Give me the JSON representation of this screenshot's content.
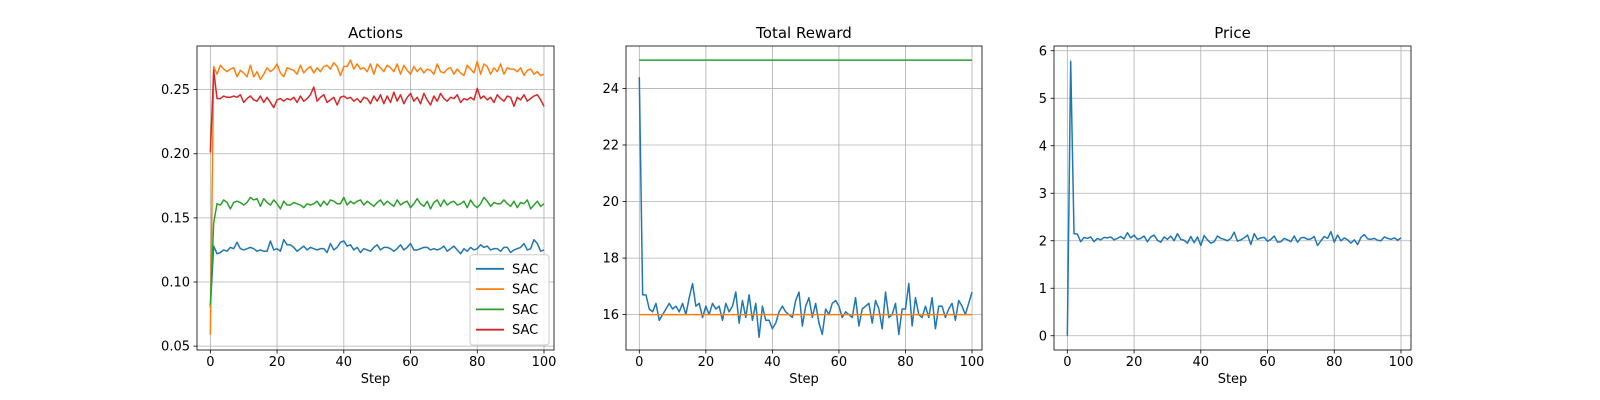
{
  "chart_data": [
    {
      "type": "line",
      "title": "Actions",
      "xlabel": "Step",
      "ylabel": "",
      "xlim": [
        -4,
        103
      ],
      "ylim": [
        0.047,
        0.284
      ],
      "xticks": [
        0,
        20,
        40,
        60,
        80,
        100
      ],
      "yticks": [
        0.05,
        0.1,
        0.15,
        0.2,
        0.25
      ],
      "ytick_labels": [
        "0.05",
        "0.10",
        "0.15",
        "0.20",
        "0.25"
      ],
      "grid": true,
      "legend": "lower right",
      "series": [
        {
          "name": "SAC",
          "color": "#1f77b4",
          "values": [
            0.08,
            0.128,
            0.122,
            0.123,
            0.125,
            0.124,
            0.127,
            0.126,
            0.131,
            0.126,
            0.125,
            0.126,
            0.127,
            0.126,
            0.124,
            0.125,
            0.124,
            0.124,
            0.132,
            0.125,
            0.126,
            0.124,
            0.133,
            0.129,
            0.129,
            0.127,
            0.124,
            0.126,
            0.128,
            0.125,
            0.127,
            0.126,
            0.125,
            0.126,
            0.126,
            0.123,
            0.13,
            0.125,
            0.127,
            0.131,
            0.132,
            0.128,
            0.129,
            0.125,
            0.127,
            0.123,
            0.126,
            0.125,
            0.124,
            0.127,
            0.129,
            0.125,
            0.127,
            0.127,
            0.126,
            0.124,
            0.126,
            0.129,
            0.125,
            0.127,
            0.13,
            0.125,
            0.125,
            0.126,
            0.127,
            0.127,
            0.125,
            0.126,
            0.125,
            0.126,
            0.128,
            0.124,
            0.126,
            0.128,
            0.125,
            0.122,
            0.126,
            0.124,
            0.127,
            0.125,
            0.126,
            0.129,
            0.127,
            0.128,
            0.125,
            0.126,
            0.126,
            0.124,
            0.127,
            0.127,
            0.123,
            0.125,
            0.126,
            0.127,
            0.13,
            0.125,
            0.126,
            0.133,
            0.13,
            0.124,
            0.125
          ]
        },
        {
          "name": "SAC",
          "color": "#ff7f0e",
          "values": [
            0.059,
            0.268,
            0.262,
            0.269,
            0.266,
            0.264,
            0.266,
            0.267,
            0.26,
            0.265,
            0.263,
            0.26,
            0.269,
            0.26,
            0.264,
            0.258,
            0.262,
            0.267,
            0.264,
            0.266,
            0.27,
            0.263,
            0.26,
            0.267,
            0.266,
            0.265,
            0.262,
            0.269,
            0.263,
            0.266,
            0.268,
            0.263,
            0.267,
            0.264,
            0.268,
            0.269,
            0.266,
            0.271,
            0.268,
            0.261,
            0.268,
            0.268,
            0.273,
            0.266,
            0.27,
            0.266,
            0.267,
            0.264,
            0.27,
            0.262,
            0.27,
            0.267,
            0.264,
            0.269,
            0.267,
            0.264,
            0.27,
            0.262,
            0.269,
            0.265,
            0.262,
            0.268,
            0.264,
            0.267,
            0.263,
            0.266,
            0.265,
            0.262,
            0.27,
            0.264,
            0.263,
            0.266,
            0.267,
            0.262,
            0.266,
            0.263,
            0.261,
            0.269,
            0.266,
            0.263,
            0.272,
            0.262,
            0.27,
            0.268,
            0.262,
            0.267,
            0.264,
            0.27,
            0.262,
            0.267,
            0.266,
            0.266,
            0.264,
            0.267,
            0.261,
            0.265,
            0.266,
            0.262,
            0.264,
            0.261,
            0.262
          ]
        },
        {
          "name": "SAC",
          "color": "#2ca02c",
          "values": [
            0.082,
            0.146,
            0.161,
            0.16,
            0.164,
            0.162,
            0.157,
            0.162,
            0.163,
            0.162,
            0.16,
            0.162,
            0.166,
            0.164,
            0.165,
            0.159,
            0.165,
            0.162,
            0.16,
            0.164,
            0.161,
            0.157,
            0.163,
            0.16,
            0.16,
            0.162,
            0.161,
            0.16,
            0.158,
            0.161,
            0.16,
            0.161,
            0.163,
            0.159,
            0.163,
            0.16,
            0.164,
            0.163,
            0.161,
            0.161,
            0.166,
            0.16,
            0.163,
            0.161,
            0.163,
            0.164,
            0.16,
            0.163,
            0.161,
            0.159,
            0.162,
            0.164,
            0.16,
            0.163,
            0.161,
            0.159,
            0.164,
            0.16,
            0.162,
            0.163,
            0.158,
            0.161,
            0.165,
            0.161,
            0.159,
            0.163,
            0.157,
            0.162,
            0.164,
            0.159,
            0.164,
            0.16,
            0.162,
            0.163,
            0.16,
            0.161,
            0.163,
            0.158,
            0.164,
            0.16,
            0.158,
            0.161,
            0.166,
            0.163,
            0.159,
            0.162,
            0.161,
            0.161,
            0.164,
            0.161,
            0.159,
            0.163,
            0.158,
            0.162,
            0.161,
            0.164,
            0.157,
            0.16,
            0.163,
            0.159,
            0.161
          ]
        },
        {
          "name": "SAC",
          "color": "#d62728",
          "values": [
            0.201,
            0.265,
            0.243,
            0.243,
            0.245,
            0.244,
            0.244,
            0.245,
            0.244,
            0.246,
            0.24,
            0.243,
            0.245,
            0.242,
            0.241,
            0.245,
            0.24,
            0.244,
            0.24,
            0.236,
            0.242,
            0.243,
            0.241,
            0.243,
            0.242,
            0.244,
            0.24,
            0.245,
            0.241,
            0.243,
            0.246,
            0.252,
            0.241,
            0.244,
            0.246,
            0.24,
            0.242,
            0.244,
            0.238,
            0.244,
            0.245,
            0.243,
            0.244,
            0.241,
            0.243,
            0.24,
            0.244,
            0.243,
            0.239,
            0.245,
            0.241,
            0.246,
            0.239,
            0.245,
            0.24,
            0.248,
            0.241,
            0.246,
            0.239,
            0.244,
            0.247,
            0.241,
            0.244,
            0.239,
            0.247,
            0.242,
            0.238,
            0.245,
            0.241,
            0.247,
            0.243,
            0.241,
            0.244,
            0.243,
            0.246,
            0.24,
            0.243,
            0.242,
            0.244,
            0.242,
            0.251,
            0.243,
            0.245,
            0.242,
            0.244,
            0.24,
            0.246,
            0.243,
            0.241,
            0.245,
            0.244,
            0.237,
            0.244,
            0.242,
            0.246,
            0.241,
            0.243,
            0.245,
            0.246,
            0.242,
            0.237
          ]
        }
      ]
    },
    {
      "type": "line",
      "title": "Total Reward",
      "xlabel": "Step",
      "ylabel": "",
      "xlim": [
        -4,
        103
      ],
      "ylim": [
        14.75,
        25.5
      ],
      "xticks": [
        0,
        20,
        40,
        60,
        80,
        100
      ],
      "yticks": [
        16,
        18,
        20,
        22,
        24
      ],
      "ytick_labels": [
        "16",
        "18",
        "20",
        "22",
        "24"
      ],
      "grid": true,
      "series": [
        {
          "color": "#1f77b4",
          "values": [
            24.4,
            16.7,
            16.7,
            16.2,
            16.1,
            16.4,
            15.8,
            16.0,
            16.2,
            16.4,
            16.2,
            16.3,
            16.1,
            16.4,
            16.0,
            16.6,
            17.1,
            16.3,
            16.4,
            15.9,
            16.3,
            16.0,
            16.4,
            16.2,
            16.3,
            15.8,
            16.4,
            16.1,
            16.3,
            16.8,
            15.7,
            16.5,
            15.9,
            16.7,
            15.8,
            16.4,
            15.2,
            16.3,
            15.8,
            15.8,
            15.5,
            15.7,
            16.1,
            16.3,
            16.1,
            16.0,
            15.9,
            16.5,
            16.8,
            15.6,
            16.3,
            16.6,
            15.9,
            16.4,
            15.7,
            15.3,
            16.2,
            16.0,
            16.4,
            16.5,
            16.3,
            15.9,
            16.1,
            16.0,
            15.9,
            16.6,
            15.6,
            16.2,
            16.3,
            16.4,
            15.7,
            16.5,
            16.2,
            15.5,
            16.8,
            15.9,
            16.0,
            16.4,
            15.3,
            16.2,
            16.2,
            17.1,
            15.6,
            16.6,
            16.0,
            15.9,
            16.3,
            15.9,
            16.6,
            15.5,
            16.3,
            16.3,
            15.9,
            16.2,
            16.4,
            15.8,
            16.5,
            16.3,
            16.0,
            16.4,
            16.8
          ]
        },
        {
          "color": "#ff7f0e",
          "values": [
            16.0,
            16.0,
            16.0,
            16.0,
            16.0,
            16.0,
            16.0,
            16.0,
            16.0,
            16.0,
            16.0,
            16.0,
            16.0,
            16.0,
            16.0,
            16.0,
            16.0,
            16.0,
            16.0,
            16.0,
            16.0,
            16.0,
            16.0,
            16.0,
            16.0,
            16.0,
            16.0,
            16.0,
            16.0,
            16.0,
            16.0,
            16.0,
            16.0,
            16.0,
            16.0,
            16.0,
            16.0,
            16.0,
            16.0,
            16.0,
            16.0,
            16.0,
            16.0,
            16.0,
            16.0,
            16.0,
            16.0,
            16.0,
            16.0,
            16.0,
            16.0,
            16.0,
            16.0,
            16.0,
            16.0,
            16.0,
            16.0,
            16.0,
            16.0,
            16.0,
            16.0,
            16.0,
            16.0,
            16.0,
            16.0,
            16.0,
            16.0,
            16.0,
            16.0,
            16.0,
            16.0,
            16.0,
            16.0,
            16.0,
            16.0,
            16.0,
            16.0,
            16.0,
            16.0,
            16.0,
            16.0,
            16.0,
            16.0,
            16.0,
            16.0,
            16.0,
            16.0,
            16.0,
            16.0,
            16.0,
            16.0,
            16.0,
            16.0,
            16.0,
            16.0,
            16.0,
            16.0,
            16.0,
            16.0,
            16.0,
            16.0
          ]
        },
        {
          "color": "#2ca02c",
          "values": [
            25.0,
            25.0,
            25.0,
            25.0,
            25.0,
            25.0,
            25.0,
            25.0,
            25.0,
            25.0,
            25.0,
            25.0,
            25.0,
            25.0,
            25.0,
            25.0,
            25.0,
            25.0,
            25.0,
            25.0,
            25.0,
            25.0,
            25.0,
            25.0,
            25.0,
            25.0,
            25.0,
            25.0,
            25.0,
            25.0,
            25.0,
            25.0,
            25.0,
            25.0,
            25.0,
            25.0,
            25.0,
            25.0,
            25.0,
            25.0,
            25.0,
            25.0,
            25.0,
            25.0,
            25.0,
            25.0,
            25.0,
            25.0,
            25.0,
            25.0,
            25.0,
            25.0,
            25.0,
            25.0,
            25.0,
            25.0,
            25.0,
            25.0,
            25.0,
            25.0,
            25.0,
            25.0,
            25.0,
            25.0,
            25.0,
            25.0,
            25.0,
            25.0,
            25.0,
            25.0,
            25.0,
            25.0,
            25.0,
            25.0,
            25.0,
            25.0,
            25.0,
            25.0,
            25.0,
            25.0,
            25.0,
            25.0,
            25.0,
            25.0,
            25.0,
            25.0,
            25.0,
            25.0,
            25.0,
            25.0,
            25.0,
            25.0,
            25.0,
            25.0,
            25.0,
            25.0,
            25.0,
            25.0,
            25.0,
            25.0,
            25.0
          ]
        }
      ]
    },
    {
      "type": "line",
      "title": "Price",
      "xlabel": "Step",
      "ylabel": "",
      "xlim": [
        -4,
        103
      ],
      "ylim": [
        -0.3,
        6.1
      ],
      "xticks": [
        0,
        20,
        40,
        60,
        80,
        100
      ],
      "yticks": [
        0,
        1,
        2,
        3,
        4,
        5,
        6
      ],
      "ytick_labels": [
        "0",
        "1",
        "2",
        "3",
        "4",
        "5",
        "6"
      ],
      "grid": true,
      "series": [
        {
          "color": "#1f77b4",
          "values": [
            0.0,
            5.78,
            2.15,
            2.14,
            1.98,
            2.07,
            2.05,
            2.08,
            1.98,
            2.05,
            2.02,
            2.07,
            2.06,
            2.08,
            2.02,
            2.05,
            2.09,
            2.04,
            2.17,
            2.06,
            2.12,
            2.03,
            2.05,
            2.1,
            1.98,
            2.08,
            2.12,
            2.01,
            1.97,
            2.08,
            2.03,
            2.1,
            2.0,
            2.15,
            2.03,
            2.01,
            1.95,
            2.09,
            1.96,
            2.08,
            1.9,
            2.11,
            2.02,
            1.95,
            1.98,
            2.1,
            2.05,
            2.03,
            2.0,
            2.05,
            2.18,
            1.99,
            2.02,
            2.06,
            2.12,
            1.92,
            2.15,
            2.03,
            2.06,
            2.07,
            1.99,
            2.03,
            2.1,
            1.97,
            1.98,
            2.05,
            2.02,
            1.98,
            2.1,
            1.97,
            2.06,
            2.07,
            2.03,
            2.04,
            2.09,
            1.9,
            2.0,
            2.09,
            2.05,
            2.19,
            1.97,
            2.12,
            2.0,
            2.06,
            2.02,
            1.95,
            2.02,
            1.92,
            2.07,
            2.13,
            2.04,
            2.03,
            2.05,
            2.01,
            2.0,
            2.08,
            2.05,
            2.03,
            2.06,
            2.01,
            2.06
          ]
        }
      ]
    }
  ]
}
